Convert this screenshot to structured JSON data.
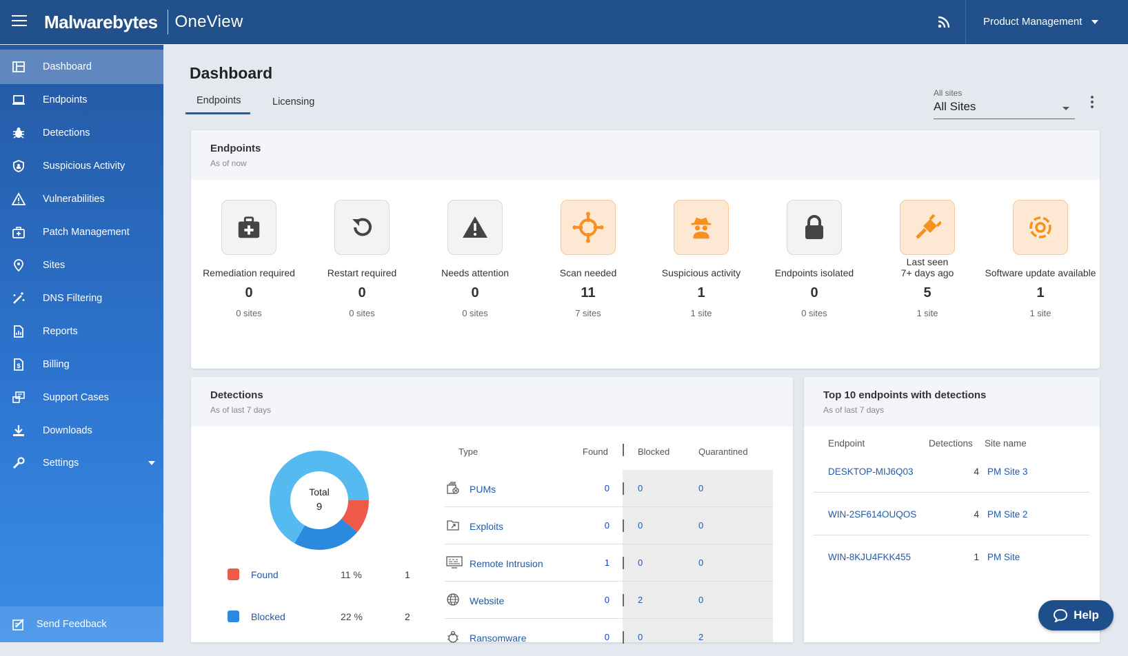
{
  "header": {
    "brand": "Malwarebytes",
    "product": "OneView",
    "account": "Product Management",
    "icons": {
      "menu": "hamburger-icon",
      "feed": "rss-icon"
    }
  },
  "sidebar": {
    "items": [
      {
        "label": "Dashboard",
        "icon": "dashboard-icon",
        "active": true
      },
      {
        "label": "Endpoints",
        "icon": "laptop-icon"
      },
      {
        "label": "Detections",
        "icon": "bug-icon"
      },
      {
        "label": "Suspicious Activity",
        "icon": "shield-icon"
      },
      {
        "label": "Vulnerabilities",
        "icon": "warning-icon"
      },
      {
        "label": "Patch Management",
        "icon": "medkit-icon"
      },
      {
        "label": "Sites",
        "icon": "location-pin-icon"
      },
      {
        "label": "DNS Filtering",
        "icon": "magic-wand-icon"
      },
      {
        "label": "Reports",
        "icon": "report-icon"
      },
      {
        "label": "Billing",
        "icon": "billing-icon"
      },
      {
        "label": "Support Cases",
        "icon": "support-icon"
      },
      {
        "label": "Downloads",
        "icon": "download-icon"
      },
      {
        "label": "Settings",
        "icon": "wrench-icon"
      }
    ],
    "feedback": "Send Feedback"
  },
  "page": {
    "title": "Dashboard",
    "tabs": [
      "Endpoints",
      "Licensing"
    ],
    "site_filter_label": "All sites",
    "site_filter_value": "All Sites"
  },
  "endpoints_card": {
    "title": "Endpoints",
    "subtitle": "As of now",
    "stats": [
      {
        "label": "Remediation required",
        "value": "0",
        "sites": "0 sites",
        "icon": "medkit-icon",
        "tone": "gray"
      },
      {
        "label": "Restart required",
        "value": "0",
        "sites": "0 sites",
        "icon": "restart-icon",
        "tone": "gray"
      },
      {
        "label": "Needs attention",
        "value": "0",
        "sites": "0 sites",
        "icon": "warning-icon",
        "tone": "gray"
      },
      {
        "label": "Scan needed",
        "value": "11",
        "sites": "7 sites",
        "icon": "crosshair-icon",
        "tone": "orange"
      },
      {
        "label": "Suspicious activity",
        "value": "1",
        "sites": "1 site",
        "icon": "spy-icon",
        "tone": "orange"
      },
      {
        "label": "Endpoints isolated",
        "value": "0",
        "sites": "0 sites",
        "icon": "lock-icon",
        "tone": "gray"
      },
      {
        "label": "Last seen\n7+ days ago",
        "value": "5",
        "sites": "1 site",
        "icon": "plug-icon",
        "tone": "orange"
      },
      {
        "label": "Software update available",
        "value": "1",
        "sites": "1 site",
        "icon": "update-gear-icon",
        "tone": "orange"
      }
    ]
  },
  "detections_card": {
    "title": "Detections",
    "subtitle": "As of last 7 days",
    "donut": {
      "center_label": "Total",
      "center_value": "9",
      "segments": [
        {
          "name": "Found",
          "count": 1,
          "color": "#ee5a4a"
        },
        {
          "name": "Blocked",
          "count": 2,
          "color": "#2b8ae0"
        },
        {
          "name": "Quarantined",
          "count": 6,
          "color": "#55baf0"
        }
      ]
    },
    "legend": [
      {
        "label": "Found",
        "pct": "11 %",
        "count": "1",
        "color": "#ee5a4a"
      },
      {
        "label": "Blocked",
        "pct": "22 %",
        "count": "2",
        "color": "#2b8ae0"
      }
    ],
    "table": {
      "headers": {
        "type": "Type",
        "found": "Found",
        "blocked": "Blocked",
        "quarantined": "Quarantined"
      },
      "rows": [
        {
          "type": "PUMs",
          "icon": "pum-icon",
          "found": "0",
          "blocked": "0",
          "quarantined": "0"
        },
        {
          "type": "Exploits",
          "icon": "exploit-icon",
          "found": "0",
          "blocked": "0",
          "quarantined": "0"
        },
        {
          "type": "Remote Intrusion",
          "icon": "remote-intrusion-icon",
          "found": "1",
          "blocked": "0",
          "quarantined": "0"
        },
        {
          "type": "Website",
          "icon": "globe-icon",
          "found": "0",
          "blocked": "2",
          "quarantined": "0"
        },
        {
          "type": "Ransomware",
          "icon": "ransomware-icon",
          "found": "0",
          "blocked": "0",
          "quarantined": "2"
        }
      ]
    }
  },
  "top_endpoints_card": {
    "title": "Top 10 endpoints with detections",
    "subtitle": "As of last 7 days",
    "headers": {
      "endpoint": "Endpoint",
      "detections": "Detections",
      "site": "Site name"
    },
    "rows": [
      {
        "endpoint": "DESKTOP-MIJ6Q03",
        "detections": "4",
        "site": "PM Site 3"
      },
      {
        "endpoint": "WIN-2SF614OUQOS",
        "detections": "4",
        "site": "PM Site 2"
      },
      {
        "endpoint": "WIN-8KJU4FKK455",
        "detections": "1",
        "site": "PM Site"
      }
    ]
  },
  "help": {
    "label": "Help",
    "icon": "chat-icon"
  }
}
